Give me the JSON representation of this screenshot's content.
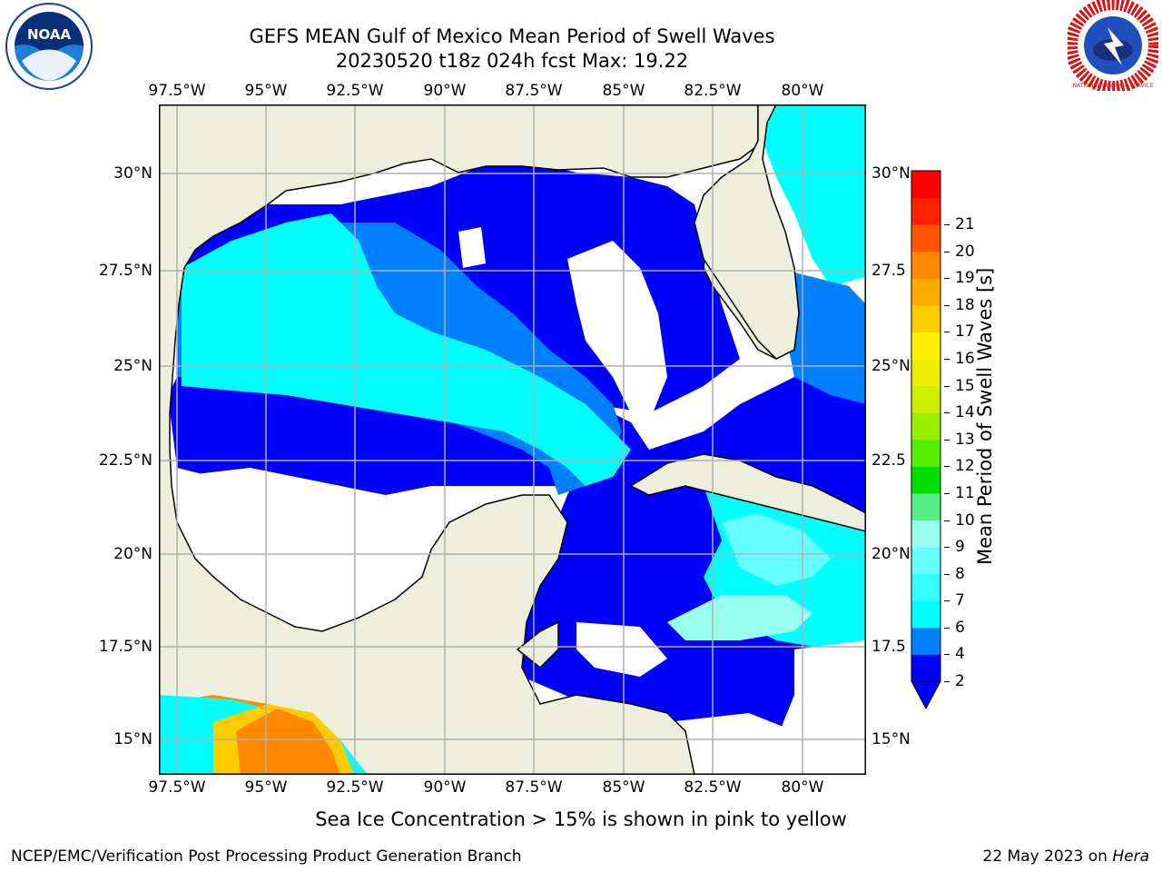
{
  "header": {
    "title_line1": "GEFS MEAN Gulf of Mexico Mean Period of Swell Waves",
    "title_line2": "20230520 t18z 024h fcst   Max: 19.22"
  },
  "map": {
    "lon_labels": [
      "97.5°W",
      "95°W",
      "92.5°W",
      "90°W",
      "87.5°W",
      "85°W",
      "82.5°W",
      "80°W"
    ],
    "lat_labels_left": [
      "30°N",
      "27.5°N",
      "25°N",
      "22.5°N",
      "20°N",
      "17.5°N",
      "15°N"
    ],
    "lat_labels_right": [
      "30°N",
      "27.5",
      "25°N",
      "22.5",
      "20°N",
      "17.5",
      "15°N"
    ],
    "land_color": "#eeeedd",
    "grid_color": "#b0b0b0"
  },
  "colorbar": {
    "label": "Mean Period of Swell Waves [s]",
    "ticks": [
      "2",
      "4",
      "6",
      "7",
      "8",
      "9",
      "10",
      "11",
      "12",
      "13",
      "14",
      "15",
      "16",
      "17",
      "18",
      "19",
      "20",
      "21"
    ],
    "colors": [
      "#0000ff",
      "#0080ff",
      "#00ffff",
      "#33ffff",
      "#66ffff",
      "#99ffee",
      "#55ee88",
      "#00dd00",
      "#55ee00",
      "#99ee00",
      "#ccee00",
      "#eeee00",
      "#ffee00",
      "#ffcc00",
      "#ffaa00",
      "#ff8800",
      "#ff5500",
      "#ff2200",
      "#ff0000"
    ]
  },
  "footer": {
    "sea_ice_note": "Sea Ice Concentration > 15% is shown in pink to yellow",
    "credit": "NCEP/EMC/Verification Post Processing Product Generation Branch",
    "date_prefix": "22 May 2023 on ",
    "host": "Hera"
  },
  "logos": {
    "left": "noa-logo",
    "right": "nws-logo",
    "left_text": "NOAA",
    "right_text": "NATIONAL WEATHER SERVICE"
  }
}
